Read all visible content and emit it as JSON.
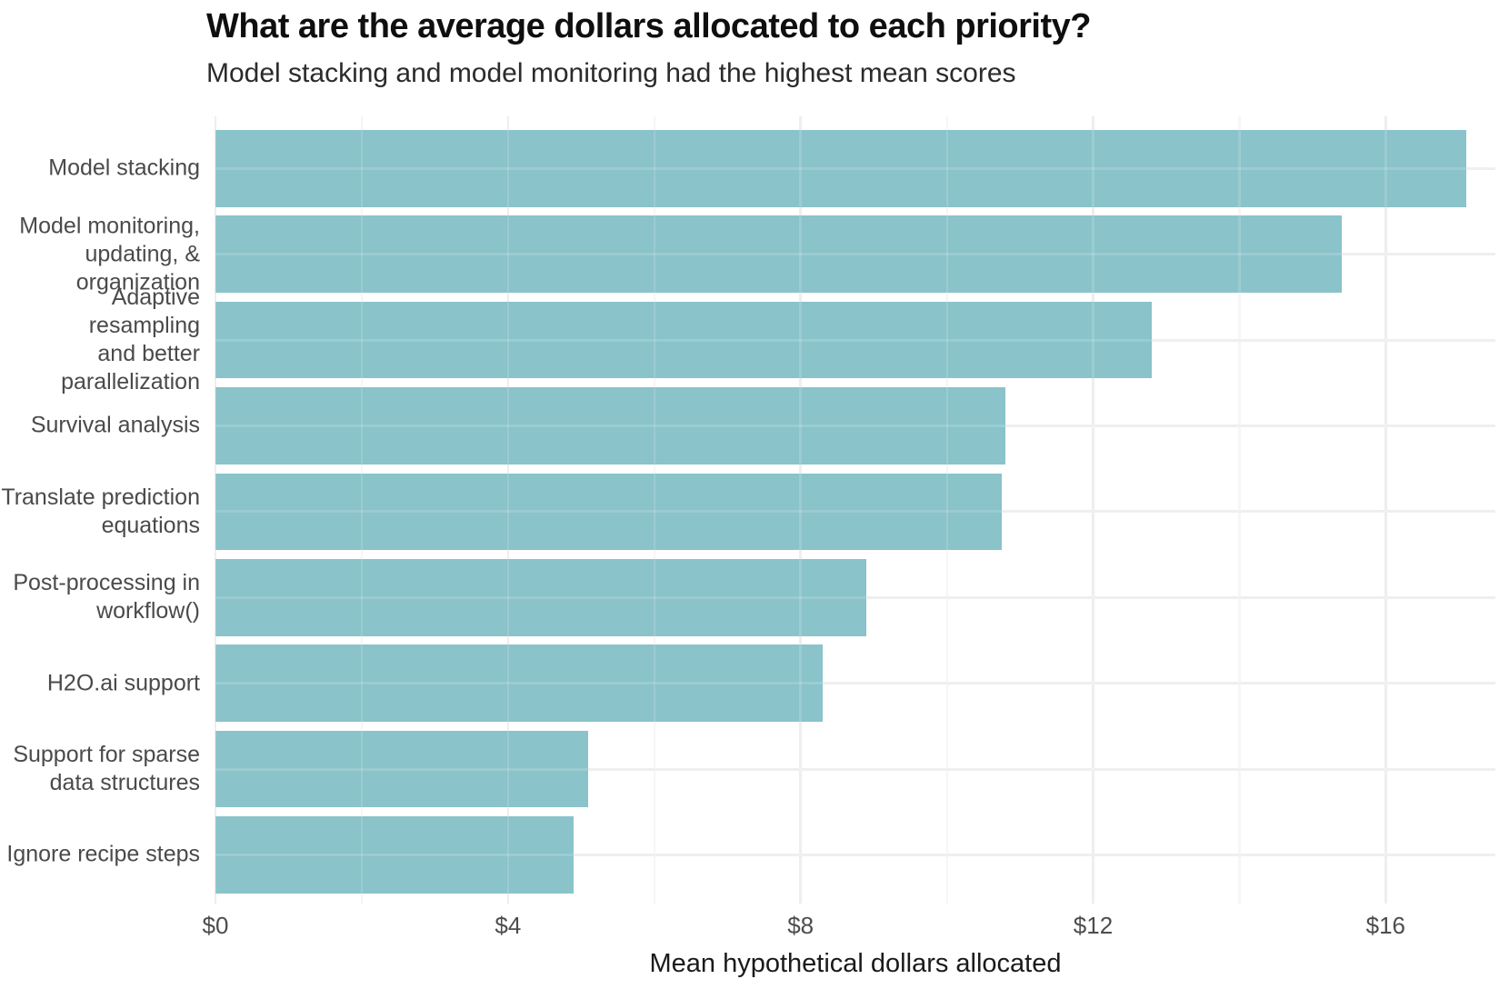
{
  "title": "What are the average dollars allocated to each priority?",
  "subtitle": "Model stacking and model monitoring had the highest mean scores",
  "chart_data": {
    "type": "bar",
    "orientation": "horizontal",
    "title": "What are the average dollars allocated to each priority?",
    "subtitle": "Model stacking and model monitoring had the highest mean scores",
    "xlabel": "Mean hypothetical dollars allocated",
    "ylabel": "",
    "categories": [
      "Model stacking",
      "Model monitoring,\nupdating, &\norganization",
      "Adaptive resampling\nand better\nparallelization",
      "Survival analysis",
      "Translate prediction\nequations",
      "Post-processing in\nworkflow()",
      "H2O.ai support",
      "Support for sparse\ndata structures",
      "Ignore recipe steps"
    ],
    "values": [
      17.1,
      15.4,
      12.8,
      10.8,
      10.75,
      8.9,
      8.3,
      5.1,
      4.9
    ],
    "x_ticks": [
      {
        "value": 0,
        "label": "$0"
      },
      {
        "value": 4,
        "label": "$4"
      },
      {
        "value": 8,
        "label": "$8"
      },
      {
        "value": 12,
        "label": "$12"
      },
      {
        "value": 16,
        "label": "$16"
      }
    ],
    "minor_ticks": [
      2,
      6,
      10,
      14
    ],
    "xlim": [
      0,
      17.5
    ],
    "grid": "major+minor vertical, major horizontal",
    "legend": "none"
  },
  "colors": {
    "background": "#ffffff",
    "bar_fill": "#8AC3C9",
    "grid_major": "#ececec",
    "grid_minor": "#f5f5f5",
    "grid_horizontal": "#ededed",
    "grid_overlay": "rgba(255,255,255,0.15)",
    "title_text": "#0f0f0f",
    "subtitle_text": "#2b2b2b",
    "tick_text": "#4d4d4d",
    "ylabel_text": "#4a4a4a",
    "axis_label_text": "#1a1a1a"
  }
}
